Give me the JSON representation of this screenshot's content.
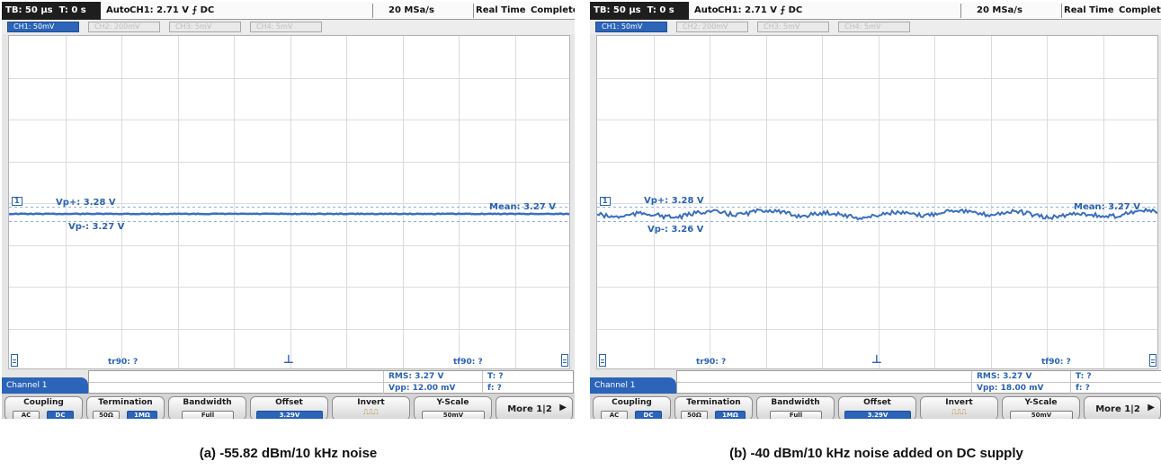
{
  "colors": {
    "accent": "#2b64b8",
    "trace": "#3a6fc0",
    "label": "#2a62b3"
  },
  "panels": [
    {
      "status": {
        "timebase": "TB: 50 µs",
        "time": "T: 0 s",
        "trigger_mode": "Auto",
        "trigger_info": "CH1: 2.71 V ⨍ DC",
        "sample_rate": "20 MSa/s",
        "acq_mode": "Real Time",
        "acq_state": "Complete"
      },
      "channel_tabs": [
        "CH1: 50mV",
        "CH2: 200mV",
        "CH3: 5mV",
        "CH4: 5mV"
      ],
      "marker": "1",
      "vp_plus": "Vp+: 3.28 V",
      "vp_minus": "Vp-: 3.27 V",
      "mean": "Mean: 3.27 V",
      "tr90": "tr90: ?",
      "tf90": "tf90: ?",
      "rms": "RMS: 3.27 V",
      "vpp": "Vpp: 12.00 mV",
      "t": "T: ?",
      "f": "f: ?",
      "channel_label": "Channel 1",
      "softkeys": {
        "coupling": {
          "label": "Coupling",
          "options": [
            "AC",
            "DC"
          ]
        },
        "termination": {
          "label": "Termination",
          "options": [
            "50Ω",
            "1MΩ"
          ]
        },
        "bandwidth": {
          "label": "Bandwidth",
          "value": "Full"
        },
        "offset": {
          "label": "Offset",
          "value": "3.29V"
        },
        "invert": {
          "label": "Invert"
        },
        "yscale": {
          "label": "Y-Scale",
          "value": "50mV"
        },
        "more": {
          "label": "More 1|2"
        }
      },
      "caption": "(a) -55.82 dBm/10 kHz noise",
      "noise_amplitude_mv": 1
    },
    {
      "status": {
        "timebase": "TB: 50 µs",
        "time": "T: 0 s",
        "trigger_mode": "Auto",
        "trigger_info": "CH1: 2.71 V ⨍ DC",
        "sample_rate": "20 MSa/s",
        "acq_mode": "Real Time",
        "acq_state": "Complete"
      },
      "channel_tabs": [
        "CH1: 50mV",
        "CH2: 200mV",
        "CH3: 5mV",
        "CH4: 5mV"
      ],
      "marker": "1",
      "vp_plus": "Vp+: 3.28 V",
      "vp_minus": "Vp-: 3.26 V",
      "mean": "Mean: 3.27 V",
      "tr90": "tr90: ?",
      "tf90": "tf90: ?",
      "rms": "RMS: 3.27 V",
      "vpp": "Vpp: 18.00 mV",
      "t": "T: ?",
      "f": "f: ?",
      "channel_label": "Channel 1",
      "softkeys": {
        "coupling": {
          "label": "Coupling",
          "options": [
            "AC",
            "DC"
          ]
        },
        "termination": {
          "label": "Termination",
          "options": [
            "50Ω",
            "1MΩ"
          ]
        },
        "bandwidth": {
          "label": "Bandwidth",
          "value": "Full"
        },
        "offset": {
          "label": "Offset",
          "value": "3.29V"
        },
        "invert": {
          "label": "Invert"
        },
        "yscale": {
          "label": "Y-Scale",
          "value": "50mV"
        },
        "more": {
          "label": "More 1|2"
        }
      },
      "caption": "(b) -40 dBm/10 kHz noise added on DC supply",
      "noise_amplitude_mv": 6
    }
  ]
}
